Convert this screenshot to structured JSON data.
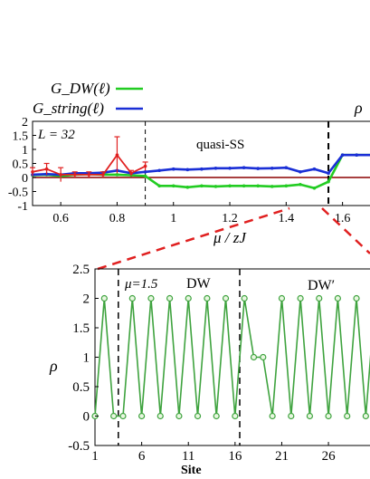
{
  "legend": {
    "g_dw": "G_DW(ℓ)",
    "g_string": "G_string(ℓ)",
    "cut_label": "ρ"
  },
  "colors": {
    "g_dw": "#22cc22",
    "g_string": "#1a2fd6",
    "error_series": "#e02020",
    "zero_line": "#8b0000",
    "site_density": "#3fa33f",
    "marker_fill": "#e8f7e0",
    "zoom_link": "#e02020"
  },
  "chart_data": [
    {
      "type": "line",
      "panel": "top",
      "annotation_L": "L = 32",
      "region_label": "quasi-SS",
      "xlabel": "μ / zJ",
      "x_ticks": [
        "0.6",
        "0.8",
        "1",
        "1.2",
        "1.4",
        "1.6"
      ],
      "y_ticks": [
        "2",
        "1.5",
        "1",
        "0.5",
        "0",
        "-0.5",
        "-1"
      ],
      "xlim": [
        0.5,
        1.72
      ],
      "ylim": [
        -1,
        2
      ],
      "vlines": [
        0.9,
        1.55
      ],
      "series": [
        {
          "name": "G_DW(ℓ)",
          "color_key": "g_dw",
          "x": [
            0.5,
            0.55,
            0.6,
            0.65,
            0.7,
            0.75,
            0.8,
            0.85,
            0.9,
            0.95,
            1.0,
            1.05,
            1.1,
            1.15,
            1.2,
            1.25,
            1.3,
            1.35,
            1.4,
            1.45,
            1.5,
            1.55,
            1.6,
            1.65,
            1.72
          ],
          "y": [
            0.08,
            0.1,
            0.05,
            0.1,
            0.12,
            0.1,
            0.1,
            0.08,
            0.05,
            -0.3,
            -0.3,
            -0.35,
            -0.3,
            -0.32,
            -0.3,
            -0.3,
            -0.3,
            -0.32,
            -0.3,
            -0.25,
            -0.38,
            -0.15,
            0.8,
            0.8,
            0.8
          ]
        },
        {
          "name": "G_string(ℓ)",
          "color_key": "g_string",
          "x": [
            0.5,
            0.55,
            0.6,
            0.65,
            0.7,
            0.75,
            0.8,
            0.85,
            0.9,
            0.95,
            1.0,
            1.05,
            1.1,
            1.15,
            1.2,
            1.25,
            1.3,
            1.35,
            1.4,
            1.45,
            1.5,
            1.55,
            1.6,
            1.65,
            1.72
          ],
          "y": [
            0.1,
            0.12,
            0.1,
            0.15,
            0.15,
            0.17,
            0.25,
            0.15,
            0.2,
            0.25,
            0.3,
            0.28,
            0.3,
            0.33,
            0.33,
            0.35,
            0.32,
            0.33,
            0.35,
            0.2,
            0.3,
            0.15,
            0.8,
            0.8,
            0.8
          ]
        },
        {
          "name": "",
          "color_key": "error_series",
          "x": [
            0.5,
            0.55,
            0.6,
            0.65,
            0.7,
            0.75,
            0.8,
            0.85,
            0.9
          ],
          "y": [
            0.2,
            0.3,
            0.1,
            0.1,
            0.1,
            0.1,
            0.8,
            0.15,
            0.4
          ],
          "err": [
            0.15,
            0.2,
            0.25,
            0.1,
            0.1,
            0.1,
            0.65,
            0.1,
            0.15
          ]
        }
      ]
    },
    {
      "type": "line",
      "panel": "bottom",
      "ylabel": "ρ",
      "xlabel": "Site",
      "mu_label": "μ=1.5",
      "region_labels": [
        "DW",
        "DW′"
      ],
      "x_ticks": [
        "1",
        "6",
        "11",
        "16",
        "21",
        "26"
      ],
      "y_ticks": [
        "2.5",
        "2",
        "1.5",
        "1",
        "0.5",
        "0",
        "-0.5"
      ],
      "xlim": [
        1,
        32
      ],
      "ylim": [
        -0.5,
        2.5
      ],
      "vlines": [
        3.5,
        16.5
      ],
      "series": [
        {
          "name": "",
          "color_key": "site_density",
          "x": [
            1,
            2,
            3,
            4,
            5,
            6,
            7,
            8,
            9,
            10,
            11,
            12,
            13,
            14,
            15,
            16,
            17,
            18,
            19,
            20,
            21,
            22,
            23,
            24,
            25,
            26,
            27,
            28,
            29,
            30,
            31,
            32
          ],
          "y": [
            0,
            2,
            0,
            0,
            2,
            0,
            2,
            0,
            2,
            0,
            2,
            0,
            2,
            0,
            2,
            0,
            2,
            1,
            1,
            0,
            2,
            0,
            2,
            0,
            2,
            0,
            2,
            0,
            2,
            0,
            2,
            0
          ]
        }
      ]
    }
  ]
}
